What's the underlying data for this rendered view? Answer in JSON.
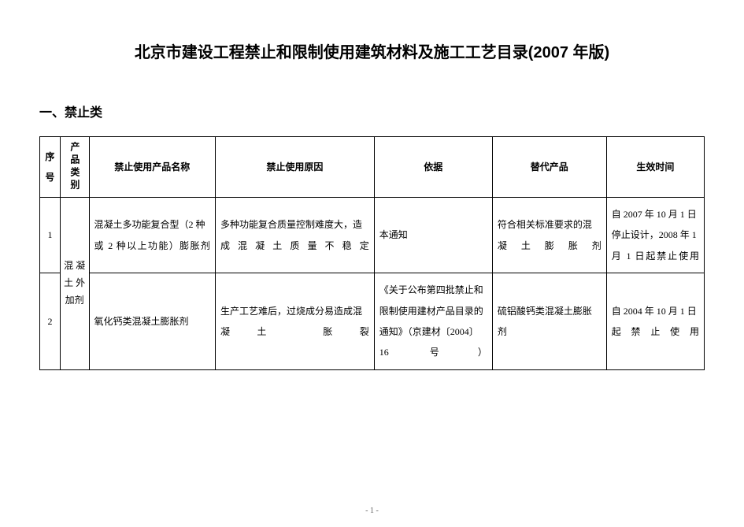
{
  "document": {
    "title": "北京市建设工程禁止和限制使用建筑材料及施工工艺目录(2007 年版)",
    "section_heading": "一、禁止类",
    "page_number": "- 1 -"
  },
  "table": {
    "headers": {
      "seq": "序号",
      "category": "产品类别",
      "name": "禁止使用产品名称",
      "reason": "禁止使用原因",
      "basis": "依据",
      "substitute": "替代产品",
      "date": "生效时间"
    },
    "category_label": "混 凝 土 外 加剂",
    "rows": [
      {
        "seq": "1",
        "name": "混凝土多功能复合型（2 种或 2 种以上功能）膨胀剂",
        "reason": "多种功能复合质量控制难度大，造成混凝土质量不稳定",
        "basis": "本通知",
        "substitute": "符合相关标准要求的混凝土膨胀剂",
        "date": "自 2007 年 10 月 1 日停止设计，2008 年 1 月 1 日起禁止使用"
      },
      {
        "seq": "2",
        "name": "氧化钙类混凝土膨胀剂",
        "reason": "生产工艺难后，过烧成分易造成混凝土 胀裂",
        "basis": "《关于公布第四批禁止和限制使用建材产品目录的通知》（京建材〔2004〕16 号）",
        "substitute": "硫铝酸钙类混凝土膨胀剂",
        "date": "自 2004 年 10 月 1 日起禁止使用"
      }
    ]
  }
}
